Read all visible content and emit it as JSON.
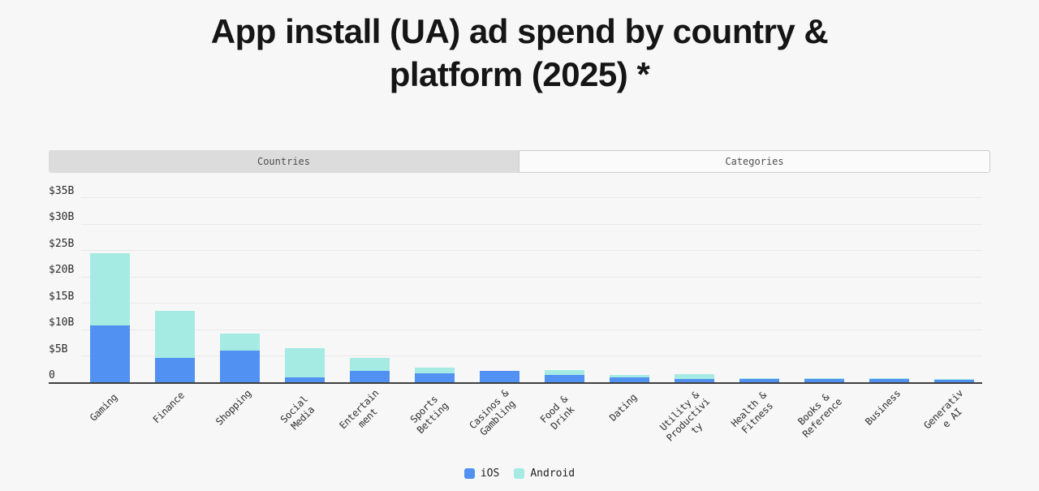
{
  "title": {
    "line1": "App install (UA) ad spend by country &",
    "line2": "platform (2025) *"
  },
  "tabs": [
    {
      "label": "Countries",
      "style": "filled"
    },
    {
      "label": "Categories",
      "style": "outlined"
    }
  ],
  "legend": [
    {
      "label": "iOS",
      "color": "#5091F1"
    },
    {
      "label": "Android",
      "color": "#A5EBE3"
    }
  ],
  "colors": {
    "background": "#f7f7f7",
    "ios": "#5091F1",
    "android": "#A5EBE3",
    "gridline": "#e9e9e9",
    "axis": "#3f3f3f"
  },
  "chart_data": {
    "type": "bar",
    "stacked": true,
    "title": "App install (UA) ad spend by country & platform (2025) *",
    "xlabel": "",
    "ylabel": "",
    "units": "$B",
    "ylim": [
      0,
      35
    ],
    "grid": true,
    "legend_position": "bottom",
    "y_ticks": [
      "$35B",
      "$30B",
      "$25B",
      "$20B",
      "$15B",
      "$10B",
      "$5B",
      "0"
    ],
    "categories": [
      "Gaming",
      "Finance",
      "Shopping",
      "Social Media",
      "Entertainment",
      "Sports Betting",
      "Casinos & Gambling",
      "Food & Drink",
      "Dating",
      "Utility & Productivity",
      "Health & Fitness",
      "Books & Reference",
      "Business",
      "Generative AI"
    ],
    "category_label_lines": [
      [
        "Gaming"
      ],
      [
        "Finance"
      ],
      [
        "Shopping"
      ],
      [
        "Social",
        "Media"
      ],
      [
        "Entertain",
        "ment"
      ],
      [
        "Sports",
        "Betting"
      ],
      [
        "Casinos &",
        "Gambling"
      ],
      [
        "Food &",
        "Drink"
      ],
      [
        "Dating"
      ],
      [
        "Utility &",
        "Productivi",
        "ty"
      ],
      [
        "Health &",
        "Fitness"
      ],
      [
        "Books &",
        "Reference"
      ],
      [
        "Business"
      ],
      [
        "Generativ",
        "e AI"
      ]
    ],
    "series": [
      {
        "name": "iOS",
        "color": "#5091F1",
        "values": [
          10.8,
          4.6,
          6.0,
          0.9,
          2.2,
          1.7,
          2.2,
          1.4,
          0.9,
          0.6,
          0.7,
          0.6,
          0.7,
          0.5
        ]
      },
      {
        "name": "Android",
        "color": "#A5EBE3",
        "values": [
          13.7,
          8.9,
          3.2,
          5.6,
          2.4,
          1.1,
          0.0,
          0.9,
          0.5,
          0.9,
          0.1,
          0.1,
          0.1,
          0.1
        ]
      }
    ]
  }
}
